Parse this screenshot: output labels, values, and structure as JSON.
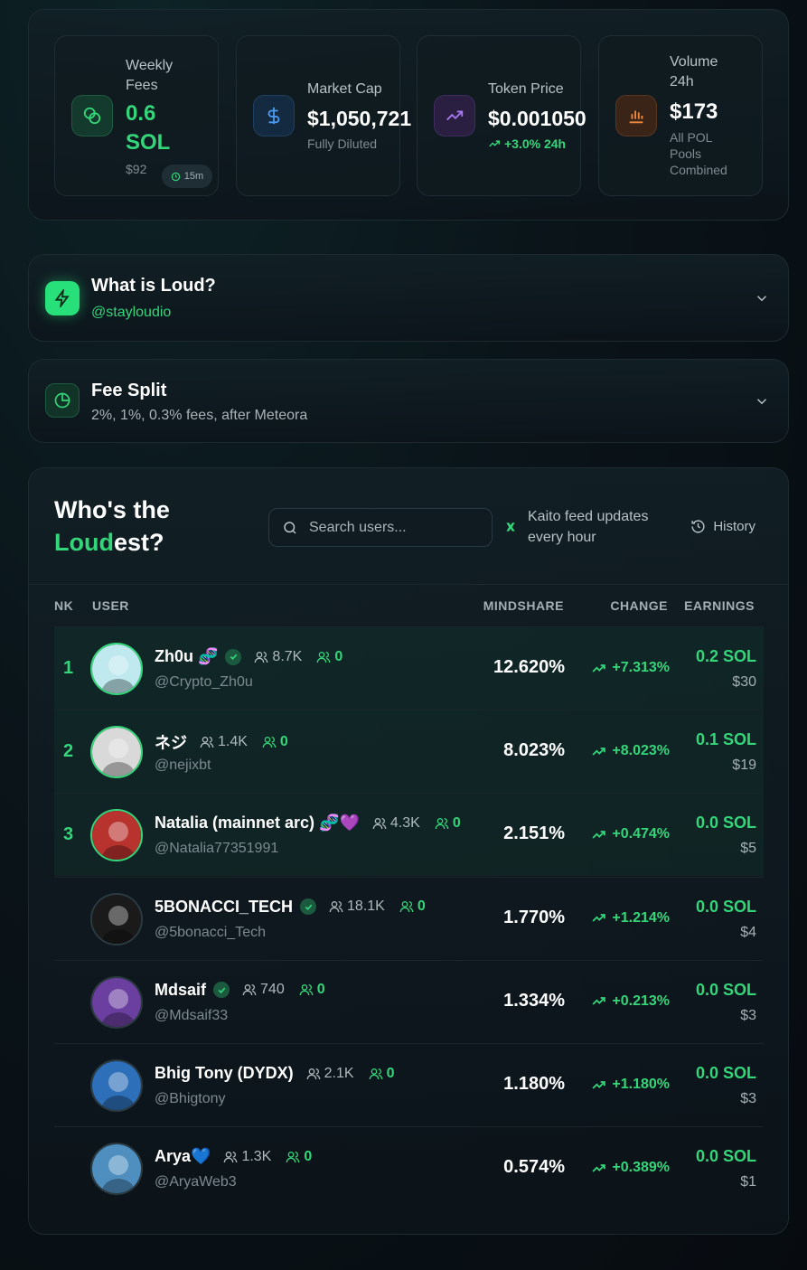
{
  "stats": [
    {
      "label": "Weekly Fees",
      "value": "0.6 SOL",
      "sub": "$92",
      "chip": "15m",
      "icon": "coins-icon"
    },
    {
      "label": "Market Cap",
      "value": "$1,050,721",
      "sub": "Fully Diluted",
      "icon": "dollar-icon"
    },
    {
      "label": "Token Price",
      "value": "$0.001050",
      "sub": "+3.0% 24h",
      "icon": "trending-up-icon"
    },
    {
      "label": "Volume 24h",
      "value": "$173",
      "sub": "All POL Pools Combined",
      "icon": "bar-chart-icon"
    }
  ],
  "about": {
    "title": "What is Loud?",
    "handle": "@stayloudio"
  },
  "fees": {
    "title": "Fee Split",
    "desc": "2%, 1%, 0.3% fees, after Meteora"
  },
  "leaderboard": {
    "title_line1": "Who's the",
    "title_accent": "Loud",
    "title_rest": "est?",
    "search_placeholder": "Search users...",
    "feed_note": "Kaito feed updates every hour",
    "history_label": "History",
    "columns": {
      "rank": "NK",
      "user": "USER",
      "mindshare": "MINDSHARE",
      "change": "CHANGE",
      "earnings": "EARNINGS"
    },
    "rows": [
      {
        "rank": "1",
        "name": "Zh0u 🧬",
        "verified": true,
        "followers": "8.7K",
        "mutual": "0",
        "handle": "@Crypto_Zh0u",
        "mindshare": "12.620%",
        "change": "+7.313%",
        "earnings": "0.2 SOL",
        "usd": "$30",
        "avatar_color": "#bfe9ee"
      },
      {
        "rank": "2",
        "name": "ネジ",
        "verified": false,
        "followers": "1.4K",
        "mutual": "0",
        "handle": "@nejixbt",
        "mindshare": "8.023%",
        "change": "+8.023%",
        "earnings": "0.1 SOL",
        "usd": "$19",
        "avatar_color": "#d9d9d9"
      },
      {
        "rank": "3",
        "name": "Natalia (mainnet arc) 🧬💜",
        "verified": false,
        "followers": "4.3K",
        "mutual": "0",
        "handle": "@Natalia77351991",
        "mindshare": "2.151%",
        "change": "+0.474%",
        "earnings": "0.0 SOL",
        "usd": "$5",
        "avatar_color": "#b8332e"
      },
      {
        "rank": "",
        "name": "5BONACCI_TECH",
        "verified": true,
        "followers": "18.1K",
        "mutual": "0",
        "handle": "@5bonacci_Tech",
        "mindshare": "1.770%",
        "change": "+1.214%",
        "earnings": "0.0 SOL",
        "usd": "$4",
        "avatar_color": "#1a1a1a"
      },
      {
        "rank": "",
        "name": "Mdsaif",
        "verified": true,
        "followers": "740",
        "mutual": "0",
        "handle": "@Mdsaif33",
        "mindshare": "1.334%",
        "change": "+0.213%",
        "earnings": "0.0 SOL",
        "usd": "$3",
        "avatar_color": "#6a3fa0"
      },
      {
        "rank": "",
        "name": "Bhig Tony (DYDX)",
        "verified": false,
        "followers": "2.1K",
        "mutual": "0",
        "handle": "@Bhigtony",
        "mindshare": "1.180%",
        "change": "+1.180%",
        "earnings": "0.0 SOL",
        "usd": "$3",
        "avatar_color": "#2d6fb8"
      },
      {
        "rank": "",
        "name": "Arya💙",
        "verified": false,
        "followers": "1.3K",
        "mutual": "0",
        "handle": "@AryaWeb3",
        "mindshare": "0.574%",
        "change": "+0.389%",
        "earnings": "0.0 SOL",
        "usd": "$1",
        "avatar_color": "#4f8fc0"
      }
    ]
  },
  "colors": {
    "accent": "#34d67a",
    "background": "#0a1419"
  }
}
